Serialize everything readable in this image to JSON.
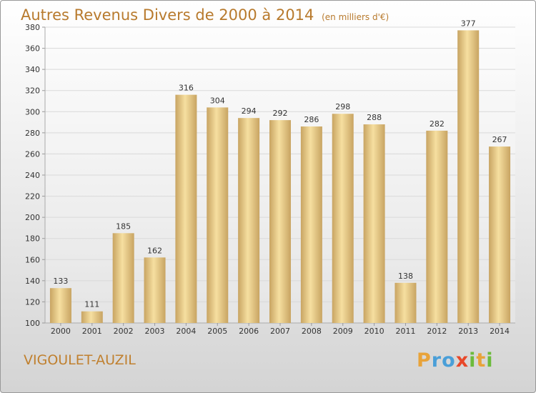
{
  "title": "Autres Revenus Divers de 2000 à 2014",
  "subtitle": "(en milliers d'€)",
  "city": "VIGOULET-AUZIL",
  "logo": {
    "letters": [
      "P",
      "r",
      "o",
      "x",
      "i",
      "t",
      "i"
    ],
    "colors": [
      "#e8a33a",
      "#4a9fd8",
      "#4a9fd8",
      "#e8482a",
      "#6cbb3c",
      "#e8a33a",
      "#6cbb3c"
    ]
  },
  "colors": {
    "bar_light": "#f6dfa0",
    "bar_dark": "#c8a462",
    "text": "#333333",
    "accent": "#b87a2d"
  },
  "chart_data": {
    "type": "bar",
    "categories": [
      "2000",
      "2001",
      "2002",
      "2003",
      "2004",
      "2005",
      "2006",
      "2007",
      "2008",
      "2009",
      "2010",
      "2011",
      "2012",
      "2013",
      "2014"
    ],
    "values": [
      133,
      111,
      185,
      162,
      316,
      304,
      294,
      292,
      286,
      298,
      288,
      138,
      282,
      377,
      267
    ],
    "ylim": [
      100,
      380
    ],
    "yticks": [
      100,
      120,
      140,
      160,
      180,
      200,
      220,
      240,
      260,
      280,
      300,
      320,
      340,
      360,
      380
    ],
    "grid": true
  }
}
